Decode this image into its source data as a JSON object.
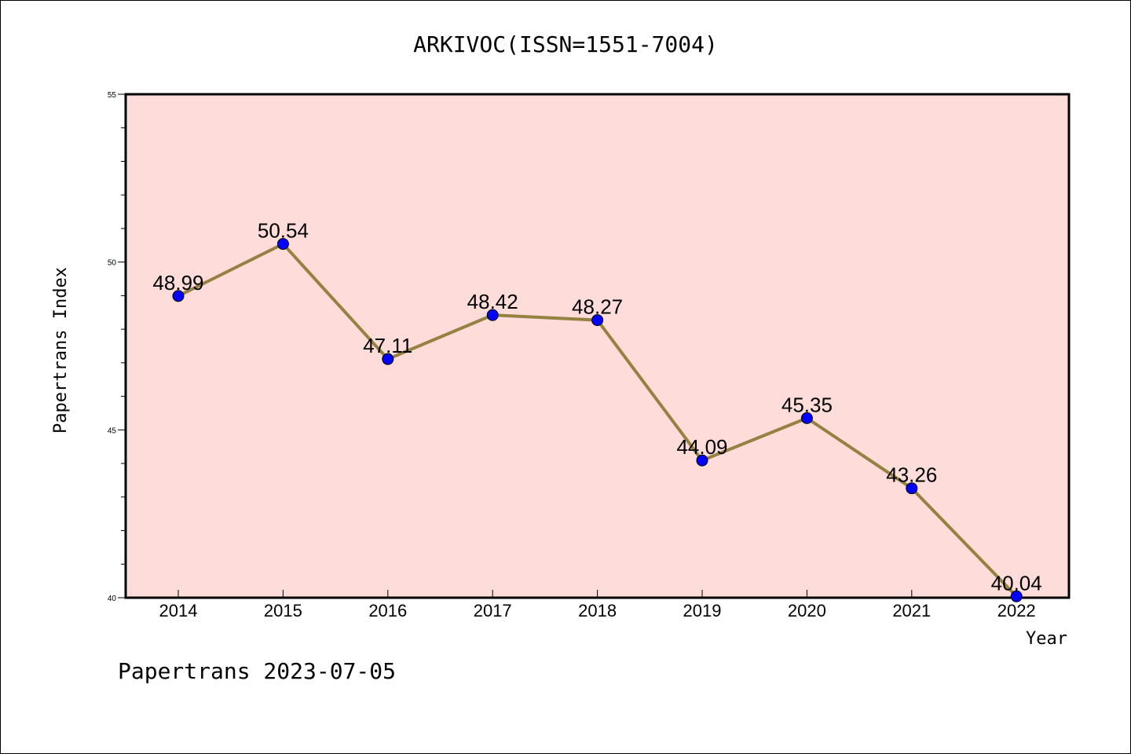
{
  "chart_data": {
    "type": "line",
    "title": "ARKIVOC(ISSN=1551-7004)",
    "xlabel": "Year",
    "ylabel": "Papertrans Index",
    "categories": [
      "2014",
      "2015",
      "2016",
      "2017",
      "2018",
      "2019",
      "2020",
      "2021",
      "2022"
    ],
    "values": [
      48.99,
      50.54,
      47.11,
      48.42,
      48.27,
      44.09,
      45.35,
      43.26,
      40.04
    ],
    "data_labels": [
      "48.99",
      "50.54",
      "47.11",
      "48.42",
      "48.27",
      "44.09",
      "45.35",
      "43.26",
      "40.04"
    ],
    "ylim": [
      40,
      55
    ],
    "yticks": [
      "40",
      "45",
      "50",
      "55"
    ],
    "plot_background": "#fddcd9",
    "line_color": "#958140",
    "marker_color": "#0000ff",
    "grid": false,
    "legend": "none"
  },
  "footer": "Papertrans 2023-07-05"
}
